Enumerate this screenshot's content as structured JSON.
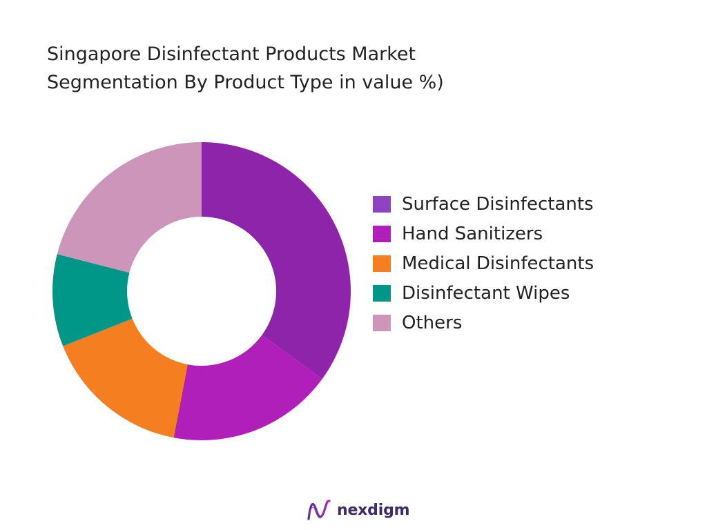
{
  "chart_data": {
    "type": "pie",
    "title_lines": [
      "Singapore Disinfectant Products Market",
      "Segmentation By Product Type in value %)"
    ],
    "donut": true,
    "slices": [
      {
        "name": "Surface Disinfectants",
        "value": 35,
        "color": "#8e24aa"
      },
      {
        "name": "Hand Sanitizers",
        "value": 18,
        "color": "#b01fba"
      },
      {
        "name": "Medical Disinfectants",
        "value": 16,
        "color": "#f47e20"
      },
      {
        "name": "Disinfectant Wipes",
        "value": 10,
        "color": "#009688"
      },
      {
        "name": "Others",
        "value": 21,
        "color": "#cc95b9"
      }
    ],
    "legend_swatch_colors": [
      "#8e44c0",
      "#b01fba",
      "#f47e20",
      "#009688",
      "#cc95b9"
    ],
    "legend_position": "right"
  },
  "brand": {
    "name": "nexdigm",
    "logo_icon": "nexdigm-wave-logo-icon"
  }
}
